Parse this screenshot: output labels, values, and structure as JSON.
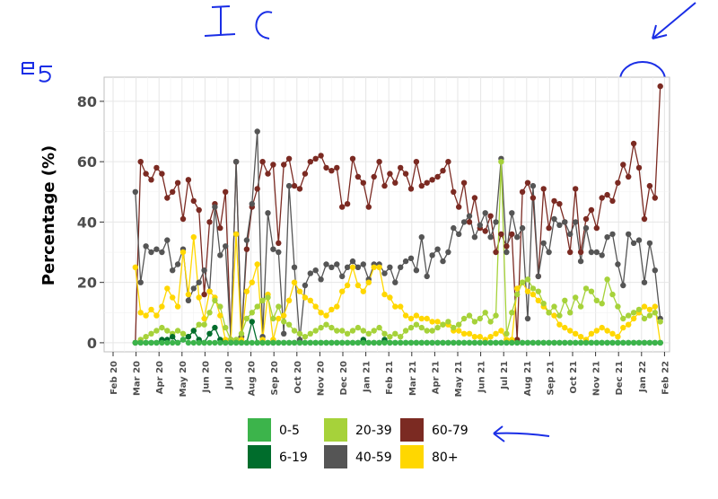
{
  "annotations": {
    "title_scribble": "I C",
    "side_note": "85"
  },
  "chart_data": {
    "type": "line",
    "ylabel": "Percentage (%)",
    "xlabel": "",
    "ylim": [
      -3,
      88
    ],
    "y_ticks": [
      0,
      20,
      40,
      60,
      80
    ],
    "x_ticks": [
      "Feb 20",
      "Mar 20",
      "Apr 20",
      "May 20",
      "Jun 20",
      "Jul 20",
      "Aug 20",
      "Sep 20",
      "Oct 20",
      "Nov 20",
      "Dec 20",
      "Jan 21",
      "Feb 21",
      "Mar 21",
      "Apr 21",
      "May 21",
      "Jun 21",
      "Jul 21",
      "Aug 21",
      "Sep 21",
      "Oct 21",
      "Nov 21",
      "Dec 21",
      "Jan 22",
      "Feb 22"
    ],
    "x_start": "Feb 20",
    "x_step": "weekly",
    "grid": true,
    "legend_position": "bottom",
    "colors": {
      "0-5": "#3cb44b",
      "6-19": "#006d2c",
      "20-39": "#a6d23a",
      "40-59": "#555555",
      "60-79": "#7b2a22",
      "80+": "#ffd700"
    },
    "series": [
      {
        "name": "60-79",
        "x_offset": 4.2,
        "values": [
          0,
          60,
          56,
          54,
          58,
          56,
          48,
          50,
          53,
          41,
          54,
          47,
          44,
          16,
          40,
          46,
          38,
          50,
          1,
          60,
          2,
          31,
          45,
          51,
          60,
          56,
          59,
          33,
          59,
          61,
          52,
          51,
          56,
          60,
          61,
          62,
          58,
          57,
          58,
          45,
          46,
          61,
          55,
          53,
          45,
          55,
          60,
          52,
          56,
          53,
          58,
          56,
          51,
          60,
          52,
          53,
          54,
          55,
          57,
          60,
          50,
          45,
          53,
          40,
          48,
          38,
          37,
          42,
          30,
          36,
          32,
          36,
          1,
          50,
          53,
          48,
          22,
          51,
          38,
          47,
          46,
          40,
          30,
          51,
          30,
          41,
          44,
          38,
          48,
          49,
          47,
          53,
          59,
          55,
          66,
          58,
          41,
          52,
          48,
          85
        ]
      },
      {
        "name": "40-59",
        "x_offset": 4.2,
        "values": [
          50,
          20,
          32,
          30,
          31,
          30,
          34,
          24,
          26,
          31,
          14,
          18,
          20,
          24,
          17,
          45,
          29,
          32,
          1,
          60,
          2,
          34,
          46,
          70,
          2,
          43,
          31,
          30,
          3,
          52,
          25,
          1,
          19,
          23,
          24,
          21,
          26,
          25,
          26,
          22,
          25,
          27,
          25,
          26,
          21,
          26,
          26,
          23,
          25,
          20,
          25,
          27,
          28,
          24,
          35,
          22,
          29,
          31,
          27,
          30,
          38,
          36,
          40,
          42,
          35,
          39,
          43,
          35,
          40,
          61,
          30,
          43,
          35,
          38,
          8,
          52,
          22,
          33,
          30,
          41,
          39,
          40,
          36,
          40,
          27,
          38,
          30,
          30,
          29,
          35,
          36,
          26,
          19,
          36,
          33,
          34,
          20,
          33,
          24,
          8
        ]
      },
      {
        "name": "80+",
        "x_offset": 4.2,
        "values": [
          25,
          10,
          9,
          11,
          9,
          12,
          18,
          15,
          12,
          30,
          16,
          35,
          15,
          8,
          17,
          15,
          9,
          1,
          1,
          36,
          1,
          17,
          20,
          26,
          1,
          16,
          1,
          8,
          9,
          14,
          20,
          17,
          15,
          14,
          12,
          10,
          9,
          11,
          12,
          17,
          19,
          25,
          19,
          17,
          20,
          25,
          25,
          16,
          15,
          12,
          12,
          9,
          8,
          9,
          8,
          8,
          7,
          7,
          6,
          6,
          4,
          4,
          3,
          3,
          2,
          2,
          1,
          2,
          3,
          4,
          1,
          1,
          18,
          20,
          17,
          16,
          14,
          12,
          10,
          9,
          6,
          5,
          4,
          3,
          2,
          1,
          3,
          4,
          5,
          4,
          3,
          2,
          5,
          6,
          8,
          10,
          12,
          11,
          12,
          0
        ]
      },
      {
        "name": "20-39",
        "x_offset": 4.2,
        "values": [
          0,
          1,
          2,
          3,
          4,
          5,
          4,
          3,
          4,
          3,
          2,
          4,
          6,
          6,
          10,
          14,
          12,
          5,
          1,
          1,
          3,
          8,
          10,
          12,
          14,
          15,
          8,
          12,
          7,
          6,
          4,
          3,
          2,
          3,
          4,
          5,
          6,
          5,
          4,
          4,
          3,
          4,
          5,
          4,
          3,
          4,
          5,
          3,
          2,
          3,
          2,
          4,
          5,
          6,
          5,
          4,
          4,
          5,
          6,
          7,
          5,
          6,
          8,
          9,
          7,
          8,
          10,
          7,
          9,
          60,
          3,
          10,
          16,
          20,
          21,
          18,
          17,
          13,
          10,
          12,
          9,
          14,
          10,
          15,
          12,
          18,
          17,
          14,
          13,
          21,
          16,
          12,
          8,
          9,
          10,
          11,
          8,
          9,
          10,
          7
        ]
      },
      {
        "name": "6-19",
        "x_offset": 4.2,
        "values": [
          0,
          0,
          0,
          0,
          0,
          1,
          1,
          2,
          0,
          1,
          2,
          4,
          1,
          0,
          3,
          5,
          1,
          0,
          0,
          0,
          0,
          0,
          7,
          0,
          0,
          0,
          0,
          0,
          0,
          0,
          0,
          0,
          0,
          0,
          0,
          0,
          0,
          0,
          0,
          0,
          0,
          0,
          0,
          1,
          0,
          0,
          0,
          1,
          0,
          0,
          0,
          0,
          0,
          0,
          0,
          0,
          0,
          0,
          0,
          0,
          0,
          0,
          0,
          0,
          0,
          0,
          0,
          0,
          0,
          0,
          0,
          0,
          0,
          0,
          0,
          0,
          0,
          0,
          0,
          0,
          0,
          0,
          0,
          0,
          0,
          0,
          0,
          0,
          0,
          0,
          0,
          0,
          0,
          0,
          0,
          0,
          0,
          0,
          0,
          0
        ]
      },
      {
        "name": "0-5",
        "x_offset": 4.2,
        "values": [
          0,
          0,
          0,
          0,
          0,
          0,
          0,
          0,
          0,
          1,
          0,
          0,
          0,
          0,
          0,
          0,
          0,
          0,
          0,
          0,
          0,
          0,
          0,
          0,
          0,
          0,
          0,
          0,
          0,
          0,
          0,
          0,
          0,
          0,
          0,
          0,
          0,
          0,
          0,
          0,
          0,
          0,
          0,
          0,
          0,
          0,
          0,
          0,
          0,
          0,
          0,
          0,
          0,
          0,
          0,
          0,
          0,
          0,
          0,
          0,
          0,
          0,
          0,
          0,
          0,
          0,
          0,
          0,
          0,
          0,
          0,
          0,
          0,
          0,
          0,
          0,
          0,
          0,
          0,
          0,
          0,
          0,
          0,
          0,
          0,
          0,
          0,
          0,
          0,
          0,
          0,
          0,
          0,
          0,
          0,
          0,
          0,
          0,
          0,
          0
        ]
      }
    ],
    "legend": [
      {
        "label": "0-5",
        "color": "#3cb44b"
      },
      {
        "label": "20-39",
        "color": "#a6d23a"
      },
      {
        "label": "60-79",
        "color": "#7b2a22"
      },
      {
        "label": "6-19",
        "color": "#006d2c"
      },
      {
        "label": "40-59",
        "color": "#555555"
      },
      {
        "label": "80+",
        "color": "#ffd700"
      }
    ]
  }
}
